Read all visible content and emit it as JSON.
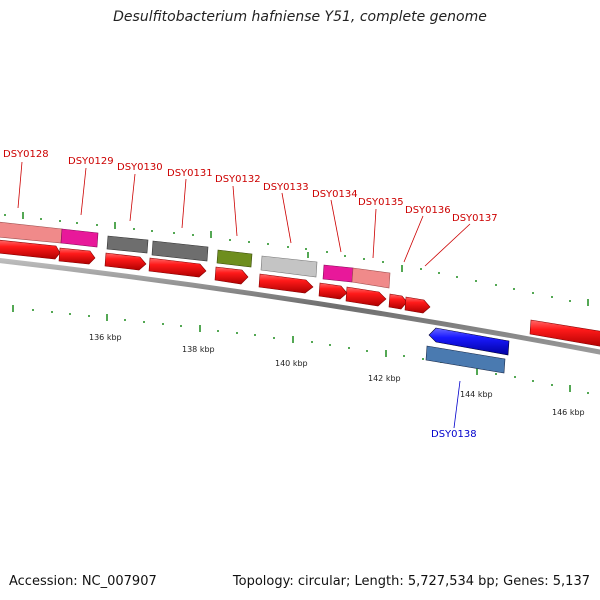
{
  "title": "Desulfitobacterium hafniense Y51, complete genome",
  "footer": {
    "accession": "Accession: NC_007907",
    "stats": "Topology: circular; Length: 5,727,534 bp; Genes: 5,137"
  },
  "colors": {
    "forward_cds": "#ee1111",
    "reverse_cds": "#1a1aee",
    "label_forward": "#cc0000",
    "label_reverse": "#0000cc",
    "backbone": "#7a7a7a",
    "tick": "#1a8a1a"
  },
  "gene_labels": [
    {
      "id": "DSY0128",
      "strand": "forward"
    },
    {
      "id": "DSY0129",
      "strand": "forward"
    },
    {
      "id": "DSY0130",
      "strand": "forward"
    },
    {
      "id": "DSY0131",
      "strand": "forward"
    },
    {
      "id": "DSY0132",
      "strand": "forward"
    },
    {
      "id": "DSY0133",
      "strand": "forward"
    },
    {
      "id": "DSY0134",
      "strand": "forward"
    },
    {
      "id": "DSY0135",
      "strand": "forward"
    },
    {
      "id": "DSY0136",
      "strand": "forward"
    },
    {
      "id": "DSY0137",
      "strand": "forward"
    },
    {
      "id": "DSY0138",
      "strand": "reverse"
    }
  ],
  "kbp_labels": [
    "136 kbp",
    "138 kbp",
    "140 kbp",
    "142 kbp",
    "144 kbp",
    "146 kbp"
  ],
  "feature_colors": {
    "cog_salmon": "#f08a8a",
    "cog_magenta": "#e8189a",
    "cog_darkgray": "#6e6e6e",
    "cog_olive": "#6e8e1e",
    "cog_lightgray": "#c4c4c4",
    "cog_steelblue": "#4a7ab0"
  }
}
